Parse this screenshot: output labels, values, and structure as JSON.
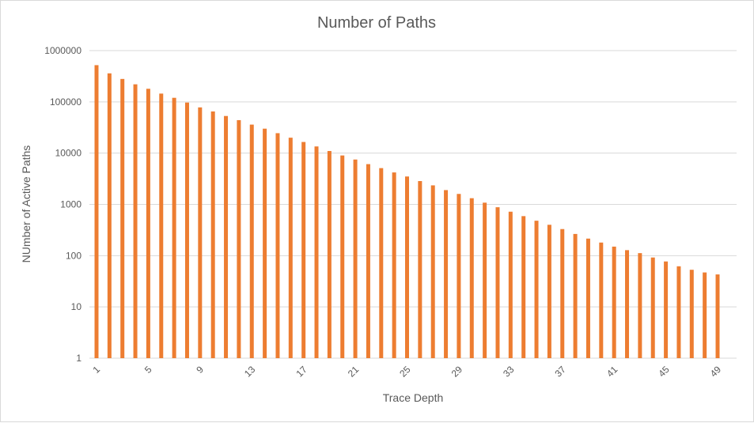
{
  "chart_data": {
    "type": "bar",
    "title": "Number of Paths",
    "xlabel": "Trace Depth",
    "ylabel": "NUmber of Active Paths",
    "yscale": "log",
    "ylim": [
      1,
      1000000
    ],
    "y_ticks": [
      "1",
      "10",
      "100",
      "1000",
      "10000",
      "100000",
      "1000000"
    ],
    "x": [
      1,
      2,
      3,
      4,
      5,
      6,
      7,
      8,
      9,
      10,
      11,
      12,
      13,
      14,
      15,
      16,
      17,
      18,
      19,
      20,
      21,
      22,
      23,
      24,
      25,
      26,
      27,
      28,
      29,
      30,
      31,
      32,
      33,
      34,
      35,
      36,
      37,
      38,
      39,
      40,
      41,
      42,
      43,
      44,
      45,
      46,
      47,
      48,
      49
    ],
    "x_tick_labels": [
      "1",
      "5",
      "9",
      "13",
      "17",
      "21",
      "25",
      "29",
      "33",
      "37",
      "41",
      "45",
      "49"
    ],
    "values": [
      520000,
      360000,
      280000,
      220000,
      180000,
      145000,
      120000,
      97000,
      78000,
      65000,
      53000,
      44000,
      36000,
      30000,
      24500,
      20000,
      16500,
      13500,
      11000,
      9000,
      7500,
      6100,
      5100,
      4200,
      3500,
      2850,
      2350,
      1900,
      1600,
      1320,
      1080,
      880,
      720,
      590,
      480,
      400,
      330,
      265,
      215,
      180,
      150,
      128,
      112,
      92,
      77,
      62,
      53,
      47,
      43
    ],
    "grid": true,
    "bar_color": "#ED7D31",
    "legend": "none"
  }
}
